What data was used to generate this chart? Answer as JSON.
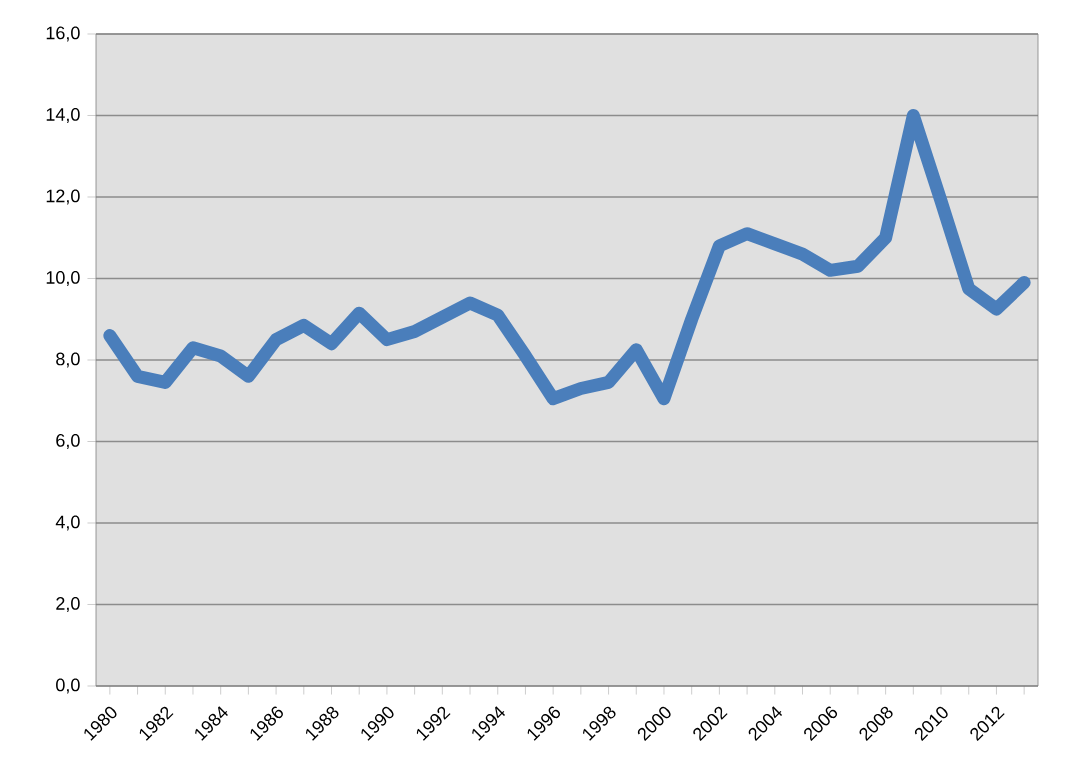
{
  "chart_data": {
    "type": "line",
    "categories": [
      "1980",
      null,
      "1982",
      null,
      "1984",
      null,
      "1986",
      null,
      "1988",
      null,
      "1990",
      null,
      "1992",
      null,
      "1994",
      null,
      "1996",
      null,
      "1998",
      null,
      "2000",
      null,
      "2002",
      null,
      "2004",
      null,
      "2006",
      null,
      "2008",
      null,
      "2010",
      null,
      "2012",
      null
    ],
    "series": [
      {
        "color": "#4a7ebb",
        "values": [
          8.6,
          7.6,
          7.45,
          8.3,
          8.1,
          7.6,
          8.5,
          8.85,
          8.4,
          9.15,
          8.5,
          8.7,
          9.05,
          9.4,
          9.1,
          8.1,
          7.05,
          7.3,
          7.45,
          8.25,
          7.05,
          9.0,
          10.8,
          11.1,
          10.85,
          10.6,
          10.2,
          10.3,
          11.0,
          14.0,
          11.9,
          9.75,
          9.25,
          9.9
        ]
      }
    ],
    "ylim": [
      0,
      16
    ],
    "yticks": [
      {
        "value": 0,
        "label": "0,0"
      },
      {
        "value": 2,
        "label": "2,0"
      },
      {
        "value": 4,
        "label": "4,0"
      },
      {
        "value": 6,
        "label": "6,0"
      },
      {
        "value": 8,
        "label": "8,0"
      },
      {
        "value": 10,
        "label": "10,0"
      },
      {
        "value": 12,
        "label": "12,0"
      },
      {
        "value": 14,
        "label": "14,0"
      },
      {
        "value": 16,
        "label": "16,0"
      }
    ],
    "grid": "y",
    "marker": "none",
    "line_style": "solid"
  }
}
